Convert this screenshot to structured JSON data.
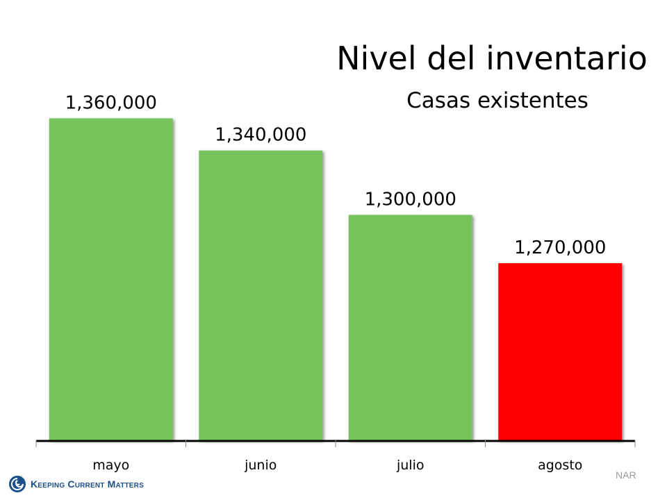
{
  "chart_data": {
    "type": "bar",
    "title": "Nivel del inventario",
    "subtitle": "Casas existentes",
    "categories": [
      "mayo",
      "junio",
      "julio",
      "agosto"
    ],
    "values": [
      1360000,
      1340000,
      1300000,
      1270000
    ],
    "data_labels": [
      "1,360,000",
      "1,340,000",
      "1,300,000",
      "1,270,000"
    ],
    "bar_colors": [
      "#77c45d",
      "#77c45d",
      "#77c45d",
      "#ff0000"
    ],
    "ylim": [
      1160000,
      1380000
    ],
    "grid": false,
    "legend": "none"
  },
  "source": "NAR",
  "brand": {
    "name": "Keeping Current Matters",
    "icon": "kcm-swirl-icon",
    "color": "#1b4f8a"
  }
}
